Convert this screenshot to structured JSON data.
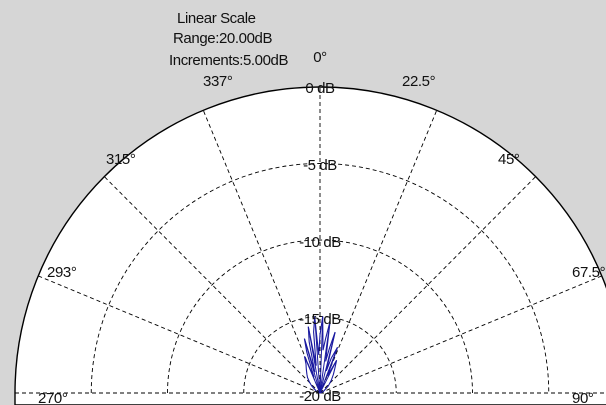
{
  "header": {
    "scale_label": "Linear Scale",
    "range_label": "Range:20.00dB",
    "increments_label": "Increments:5.00dB"
  },
  "chart_data": {
    "type": "polar",
    "projection": "upper half-plane (270° through 0° to 90°)",
    "angle_labels": [
      "270°",
      "293°",
      "315°",
      "337°",
      "0°",
      "22.5°",
      "45°",
      "67.5°",
      "90°"
    ],
    "radial_labels": [
      "0 dB",
      "-5 dB",
      "-10 dB",
      "-15 dB",
      "-20 dB"
    ],
    "radial_range_db": [
      -20,
      0
    ],
    "increment_db": 5,
    "grid": true,
    "colors": {
      "background": "#d6d6d6",
      "plot_area": "#ffffff",
      "grid": "#000000",
      "pattern": "#1a1aa0"
    },
    "series": [
      {
        "style": "lobed radiation pattern",
        "lobes": [
          {
            "angle_deg": -23,
            "peak_db": -17.4
          },
          {
            "angle_deg": -16,
            "peak_db": -16.3
          },
          {
            "angle_deg": -10,
            "peak_db": -15.6
          },
          {
            "angle_deg": -4,
            "peak_db": -15.0
          },
          {
            "angle_deg": 2,
            "peak_db": -15.0
          },
          {
            "angle_deg": 8,
            "peak_db": -15.3
          },
          {
            "angle_deg": 14,
            "peak_db": -15.9
          },
          {
            "angle_deg": 21,
            "peak_db": -16.8
          },
          {
            "angle_deg": 27,
            "peak_db": -17.6
          }
        ],
        "pattern": [
          [
            -90,
            -20
          ],
          [
            -75,
            -19.9
          ],
          [
            -62,
            -19.7
          ],
          [
            -50,
            -19.3
          ],
          [
            -44,
            -19.0
          ],
          [
            -39,
            -18.7
          ],
          [
            -35,
            -18.5
          ],
          [
            -30,
            -18.2
          ],
          [
            -26,
            -17.9
          ],
          [
            -23,
            -17.4
          ],
          [
            -21,
            -18.9
          ],
          [
            -18,
            -17.2
          ],
          [
            -16,
            -16.3
          ],
          [
            -14,
            -18.6
          ],
          [
            -12,
            -16.6
          ],
          [
            -10,
            -15.6
          ],
          [
            -8,
            -18.2
          ],
          [
            -6,
            -16.0
          ],
          [
            -4,
            -15.0
          ],
          [
            -2,
            -17.5
          ],
          [
            0,
            -16.2
          ],
          [
            2,
            -15.0
          ],
          [
            4,
            -17.2
          ],
          [
            6,
            -16.4
          ],
          [
            8,
            -15.3
          ],
          [
            10,
            -17.9
          ],
          [
            12,
            -17.0
          ],
          [
            14,
            -15.9
          ],
          [
            16,
            -18.5
          ],
          [
            18,
            -17.6
          ],
          [
            21,
            -16.8
          ],
          [
            24,
            -18.8
          ],
          [
            27,
            -17.6
          ],
          [
            31,
            -18.1
          ],
          [
            36,
            -18.5
          ],
          [
            42,
            -18.9
          ],
          [
            50,
            -19.3
          ],
          [
            62,
            -19.7
          ],
          [
            75,
            -19.9
          ],
          [
            90,
            -20
          ]
        ]
      }
    ]
  }
}
